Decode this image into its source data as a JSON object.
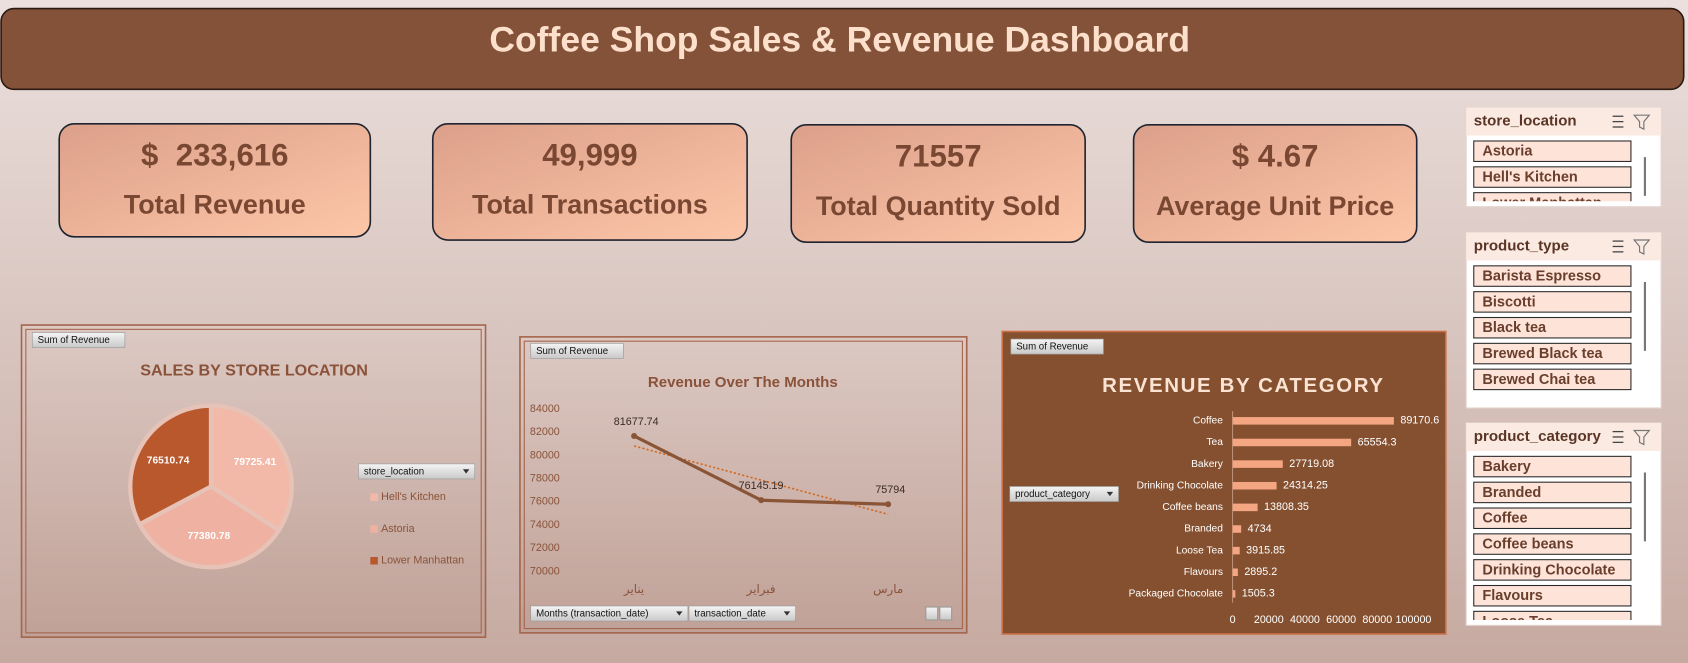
{
  "header": {
    "title": "Coffee Shop Sales & Revenue Dashboard"
  },
  "kpis": [
    {
      "value": "$  233,616",
      "label": "Total Revenue"
    },
    {
      "value": "49,999",
      "label": "Total Transactions"
    },
    {
      "value": "71557",
      "label": "Total Quantity Sold"
    },
    {
      "value": "$ 4.67",
      "label": "Average Unit Price"
    }
  ],
  "slicers": [
    {
      "title": "store_location",
      "items": [
        "Astoria",
        "Hell's Kitchen",
        "Lower Manhattan"
      ]
    },
    {
      "title": "product_type",
      "items": [
        "Barista Espresso",
        "Biscotti",
        "Black tea",
        "Brewed Black tea",
        "Brewed Chai tea"
      ]
    },
    {
      "title": "product_category",
      "items": [
        "Bakery",
        "Branded",
        "Coffee",
        "Coffee beans",
        "Drinking Chocolate",
        "Flavours",
        "Loose Tea"
      ]
    }
  ],
  "chart_data": [
    {
      "type": "pie",
      "title": "SALES BY STORE LOCATION",
      "field_button": "Sum of Revenue",
      "legend_title": "store_location",
      "categories": [
        "Hell's Kitchen",
        "Astoria",
        "Lower Manhattan"
      ],
      "values": [
        79725.41,
        77380.78,
        76510.74
      ],
      "colors": [
        "#f3b9a8",
        "#efb1a1",
        "#b9582c"
      ],
      "legend": "right"
    },
    {
      "type": "line",
      "title": "Revenue Over  The Months",
      "field_button": "Sum of Revenue",
      "filter_buttons": [
        "Months (transaction_date)",
        "transaction_date"
      ],
      "categories": [
        "يناير",
        "فبراير",
        "مارس"
      ],
      "values": [
        81677.74,
        76145.19,
        75794
      ],
      "color": "#8a5536",
      "trendline": true,
      "trend_color": "#d2691e",
      "ylim": [
        70000,
        84000
      ],
      "yticks": [
        70000,
        72000,
        74000,
        76000,
        78000,
        80000,
        82000,
        84000
      ]
    },
    {
      "type": "hbar",
      "title": "REVENUE BY CATEGORY",
      "field_button": "Sum of Revenue",
      "filter_buttons": [
        "product_category"
      ],
      "categories": [
        "Coffee",
        "Tea",
        "Bakery",
        "Drinking Chocolate",
        "Coffee beans",
        "Branded",
        "Loose Tea",
        "Flavours",
        "Packaged Chocolate"
      ],
      "values": [
        89170.6,
        65554.3,
        27719.08,
        24314.25,
        13808.35,
        4734,
        3915.85,
        2895.2,
        1505.3
      ],
      "color": "#f4a582",
      "xlim": [
        0,
        100000
      ],
      "xticks": [
        0,
        20000,
        40000,
        60000,
        80000,
        100000
      ]
    }
  ]
}
